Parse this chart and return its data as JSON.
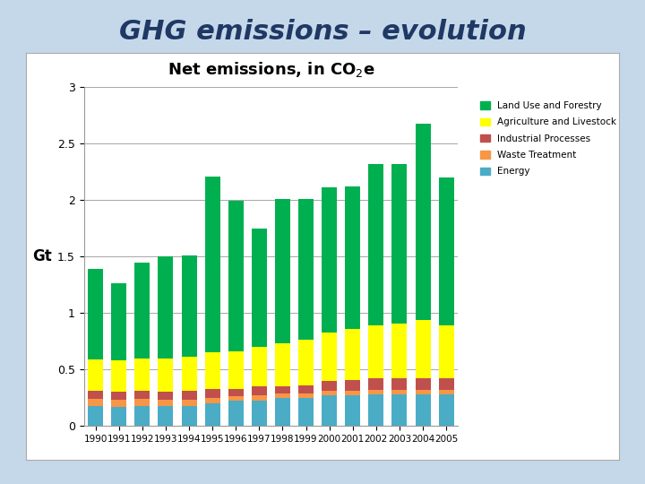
{
  "title_main": "GHG emissions – evolution",
  "chart_title": "Net emissions, in CO₂e",
  "ylabel": "Gt",
  "years": [
    1990,
    1991,
    1992,
    1993,
    1994,
    1995,
    1996,
    1997,
    1998,
    1999,
    2000,
    2001,
    2002,
    2003,
    2004,
    2005
  ],
  "energy": [
    0.18,
    0.17,
    0.18,
    0.18,
    0.18,
    0.2,
    0.22,
    0.22,
    0.25,
    0.25,
    0.27,
    0.27,
    0.28,
    0.28,
    0.28,
    0.28
  ],
  "waste": [
    0.06,
    0.06,
    0.06,
    0.05,
    0.05,
    0.05,
    0.04,
    0.05,
    0.04,
    0.04,
    0.04,
    0.04,
    0.04,
    0.04,
    0.04,
    0.04
  ],
  "industrial": [
    0.07,
    0.07,
    0.07,
    0.07,
    0.08,
    0.08,
    0.07,
    0.08,
    0.06,
    0.07,
    0.09,
    0.1,
    0.1,
    0.1,
    0.1,
    0.1
  ],
  "agriculture": [
    0.28,
    0.28,
    0.29,
    0.3,
    0.3,
    0.32,
    0.33,
    0.35,
    0.38,
    0.4,
    0.43,
    0.45,
    0.47,
    0.49,
    0.52,
    0.47
  ],
  "land_forestry": [
    0.8,
    0.68,
    0.85,
    0.9,
    0.9,
    1.56,
    1.33,
    1.05,
    1.28,
    1.25,
    1.28,
    1.26,
    1.43,
    1.41,
    1.74,
    1.31
  ],
  "colors": {
    "energy": "#4BACC6",
    "waste": "#F79646",
    "industrial": "#C0504D",
    "agriculture": "#FFFF00",
    "land_forestry": "#00B050"
  },
  "ylim": [
    0,
    3.0
  ],
  "yticks": [
    0,
    0.5,
    1.0,
    1.5,
    2.0,
    2.5,
    3.0
  ],
  "ytick_labels": [
    "0",
    "0.5",
    "1",
    "1.5",
    "2",
    "2.5",
    "3"
  ],
  "bg_outer": "#C5D8EA",
  "panel_bg": "#F2F2F2",
  "bar_width": 0.65,
  "title_fontsize": 22,
  "chart_title_fontsize": 13
}
